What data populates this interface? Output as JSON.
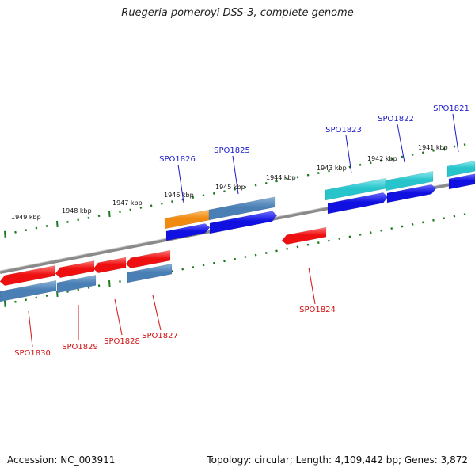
{
  "title": "Ruegeria pomeroyi DSS-3, complete genome",
  "footer": {
    "accession_label": "Accession:",
    "accession": "NC_003911",
    "summary": "Topology: circular; Length: 4,109,442 bp; Genes: 3,872"
  },
  "colors": {
    "backbone": "#8a8a8a",
    "tick": "#1f7a1f",
    "label_top": "#1a1acc",
    "label_bottom": "#d01010",
    "forward_cds": "#1010e0",
    "forward_gene_teal": "#27c4cc",
    "forward_gene_steel": "#4a7fb5",
    "forward_gene_orange": "#f08a10",
    "reverse_cds": "#ee1010",
    "reverse_gene_steel": "#4a7fb5"
  },
  "scale_labels": [
    "1949 kbp",
    "1948 kbp",
    "1947 kbp",
    "1946 kbp",
    "1945 kbp",
    "1944 kbp",
    "1943 kbp",
    "1942 kbp",
    "1941 kbp"
  ],
  "genes_top": [
    "SPO1821",
    "SPO1822",
    "SPO1823",
    "SPO1825",
    "SPO1826"
  ],
  "genes_bottom": [
    "SPO1824",
    "SPO1827",
    "SPO1828",
    "SPO1829",
    "SPO1830"
  ]
}
